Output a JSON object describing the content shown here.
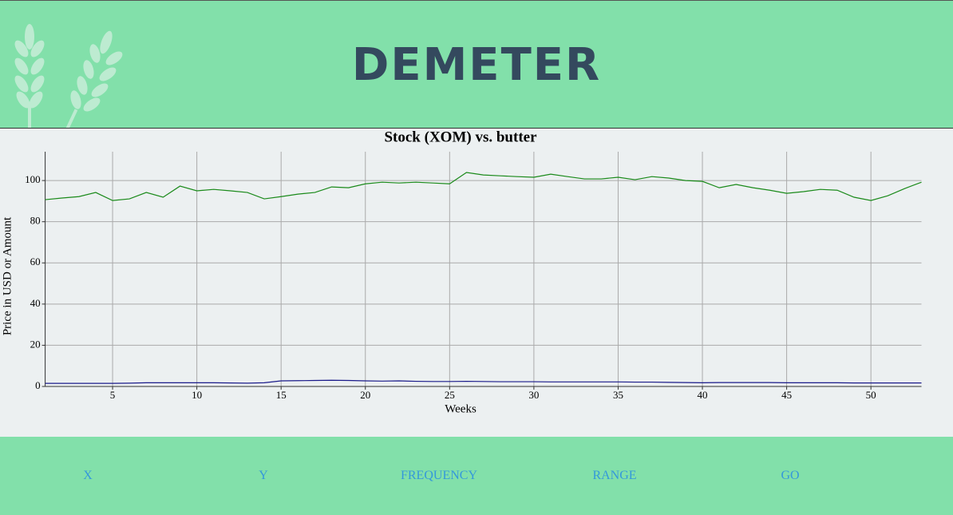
{
  "header": {
    "title": "DEMETER"
  },
  "chart_data": {
    "type": "line",
    "title": "Stock (XOM) vs. butter",
    "x_label": "Weeks",
    "y_label": "Price in USD or Amount",
    "x": [
      1,
      2,
      3,
      4,
      5,
      6,
      7,
      8,
      9,
      10,
      11,
      12,
      13,
      14,
      15,
      16,
      17,
      18,
      19,
      20,
      21,
      22,
      23,
      24,
      25,
      26,
      27,
      28,
      29,
      30,
      31,
      32,
      33,
      34,
      35,
      36,
      37,
      38,
      39,
      40,
      41,
      42,
      43,
      44,
      45,
      46,
      47,
      48,
      49,
      50,
      51,
      52,
      53
    ],
    "series": [
      {
        "color": "#1a8a1a",
        "values": [
          90.7,
          91.5,
          92.2,
          94.2,
          90.3,
          91.1,
          94.2,
          91.9,
          97.3,
          95,
          95.7,
          95,
          94.2,
          91.1,
          92.2,
          93.4,
          94.2,
          96.9,
          96.5,
          98.4,
          99.2,
          98.8,
          99.2,
          98.8,
          98.4,
          103.9,
          102.7,
          102.3,
          101.9,
          101.6,
          103.1,
          101.9,
          100.8,
          100.8,
          101.6,
          100.4,
          101.9,
          101.2,
          100,
          99.6,
          96.5,
          98.1,
          96.5,
          95.3,
          93.8,
          94.6,
          95.7,
          95.3,
          91.9,
          90.3,
          92.6,
          96.1,
          99.2
        ]
      },
      {
        "color": "#1a1a8a",
        "values": [
          1.5,
          1.5,
          1.5,
          1.5,
          1.5,
          1.6,
          1.8,
          1.8,
          1.8,
          1.8,
          1.8,
          1.7,
          1.6,
          1.8,
          2.7,
          2.8,
          2.9,
          3,
          2.9,
          2.7,
          2.6,
          2.7,
          2.5,
          2.4,
          2.4,
          2.5,
          2.4,
          2.3,
          2.3,
          2.3,
          2.2,
          2.2,
          2.2,
          2.2,
          2.2,
          2.1,
          2.1,
          2,
          1.9,
          1.8,
          1.9,
          1.9,
          1.9,
          1.9,
          1.8,
          1.8,
          1.8,
          1.8,
          1.7,
          1.7,
          1.7,
          1.7,
          1.7
        ]
      }
    ],
    "xlim": [
      1,
      53
    ],
    "xticks": [
      5,
      10,
      15,
      20,
      25,
      30,
      35,
      40,
      45,
      50
    ],
    "ylim": [
      0,
      114
    ],
    "yticks": [
      0,
      20,
      40,
      60,
      80,
      100
    ],
    "grid": true
  },
  "nav": {
    "items": [
      "X",
      "Y",
      "FREQUENCY",
      "RANGE",
      "GO"
    ]
  }
}
